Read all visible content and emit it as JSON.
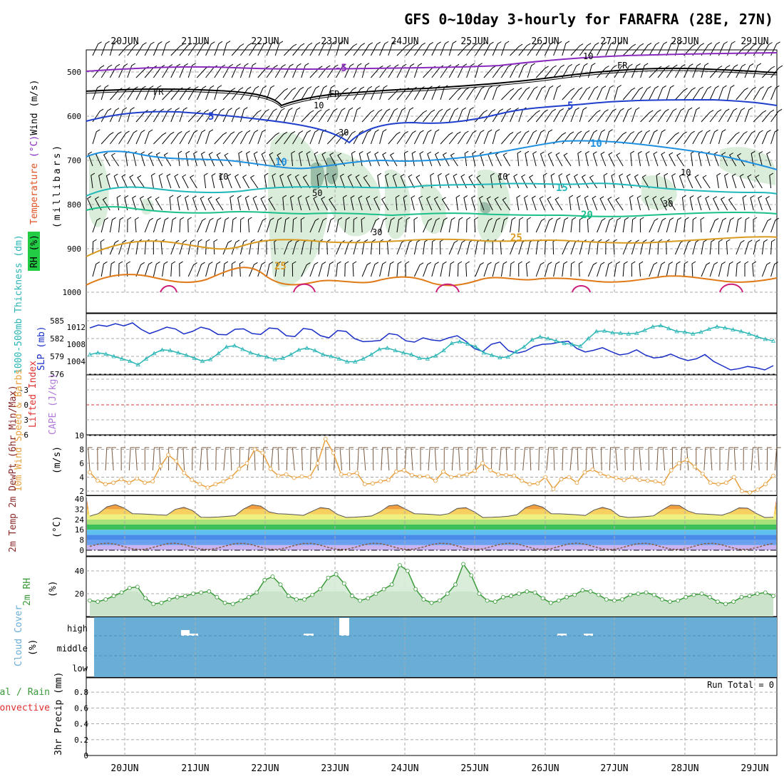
{
  "title": "GFS 0~10day 3-hourly for FARAFRA (28E, 27N)",
  "dates": [
    "20JUN",
    "21JUN",
    "22JUN",
    "23JUN",
    "24JUN",
    "25JUN",
    "26JUN",
    "27JUN",
    "28JUN",
    "29JUN"
  ],
  "colors": {
    "temp_label": "#e05020",
    "wind_label": "#000000",
    "rh_fill": "#d6ead6",
    "cloud_fill": "#6aaed6",
    "slp_line": "#1a2fc8",
    "thickness_line": "#2ab5b5",
    "cape_label": "#b07ad8",
    "li_label": "#e03030",
    "wind10_line": "#e8a040",
    "barb10_color": "#7a5a40",
    "rh2m_line": "#3a9a3a"
  },
  "panels": {
    "upper_air": {
      "ylabel_parts": [
        "Wind",
        "(m/s)",
        "Temperature",
        "(°C)",
        "RH (%)"
      ],
      "ylabel_axis": "(millibars)",
      "pressure_ticks": [
        "500",
        "600",
        "700",
        "800",
        "900",
        "1000"
      ],
      "isotherm_labels": [
        "-5",
        "5",
        "10",
        "15",
        "20",
        "25",
        "FR"
      ],
      "rh_contour_labels": [
        "10",
        "30",
        "50"
      ]
    },
    "thickness_slp": {
      "ylabel_left": "1000-500mb Thickness (dm)",
      "ylabel_right": "SLP (mb)",
      "thickness_ticks": [
        "585",
        "582",
        "579",
        "576"
      ],
      "slp_ticks": [
        "1012",
        "1008",
        "1004"
      ]
    },
    "stability": {
      "ylabel_left": "Lifted Index",
      "ylabel_right": "CAPE (J/kg)",
      "li_ticks": [
        "-3",
        "0",
        "3",
        "6"
      ]
    },
    "wind10m": {
      "ylabel_left": "10m Wind Speed & Barbs",
      "ylabel_unit": "(m/s)",
      "ticks": [
        "10",
        "8",
        "6",
        "4",
        "2"
      ]
    },
    "temp2m": {
      "ylabel": "2m Temp 2m DewPt (6hr Min/Max)",
      "ylabel_unit": "(°C)",
      "ticks": [
        "40",
        "32",
        "24",
        "16",
        "8",
        "0"
      ]
    },
    "rh2m": {
      "ylabel": "2m RH",
      "ylabel_unit": "(%)",
      "ticks": [
        "40",
        "20"
      ]
    },
    "cloud": {
      "ylabel": "Cloud Cover",
      "ylabel_unit": "(%)",
      "levels": [
        "high",
        "middle",
        "low"
      ]
    },
    "precip": {
      "ylabel_left_1": "Total / Rain",
      "ylabel_left_2": "Convective",
      "ylabel": "3hr Precip (mm)",
      "ticks": [
        "0.8",
        "0.6",
        "0.4",
        "0.2",
        "0"
      ],
      "run_total": "Run Total = 0"
    }
  },
  "chart_data": [
    {
      "type": "line",
      "name": "1000-500mb thickness and SLP",
      "x_label": "",
      "series": [
        {
          "name": "SLP (mb)",
          "values": [
            1011.8,
            1012.5,
            1012.2,
            1012.8,
            1012.3,
            1013.0,
            1011.5,
            1010.5,
            1011.2,
            1012.0,
            1011.6,
            1010.4,
            1011.0,
            1012.0,
            1011.5,
            1010.3,
            1010.2,
            1011.5,
            1011.6,
            1010.5,
            1010.3,
            1011.8,
            1011.6,
            1010.0,
            1009.8,
            1011.7,
            1011.4,
            1010.0,
            1009.5,
            1011.2,
            1011.0,
            1009.3,
            1008.6,
            1008.7,
            1008.9,
            1010.5,
            1010.2,
            1008.8,
            1008.5,
            1009.5,
            1009.0,
            1008.8,
            1009.5,
            1010.0,
            1008.7,
            1007.0,
            1006.3,
            1008.0,
            1008.5,
            1006.5,
            1005.9,
            1006.4,
            1007.5,
            1008.0,
            1008.1,
            1008.5,
            1008.7,
            1007.0,
            1006.2,
            1006.6,
            1007.2,
            1006.3,
            1005.5,
            1005.8,
            1006.7,
            1005.5,
            1004.8,
            1005.0,
            1005.7,
            1004.8,
            1004.2,
            1004.6,
            1005.6,
            1004.0,
            1003.0,
            1002.0,
            1002.3,
            1002.8,
            1002.5,
            1002.0,
            1003.0
          ]
        },
        {
          "name": "1000-500mb Thickness (dm)",
          "values": [
            579.3,
            579.6,
            579.4,
            579.0,
            578.6,
            578.2,
            577.6,
            578.6,
            579.5,
            580.1,
            580.0,
            579.6,
            579.2,
            578.7,
            578.2,
            578.5,
            579.5,
            580.6,
            580.8,
            580.2,
            579.6,
            579.2,
            578.9,
            578.5,
            578.7,
            579.3,
            580.1,
            580.4,
            580.0,
            579.3,
            579.0,
            578.6,
            578.1,
            578.1,
            578.6,
            579.3,
            580.2,
            580.4,
            580.0,
            579.6,
            579.3,
            578.7,
            578.6,
            579.1,
            580.0,
            581.2,
            581.5,
            581.1,
            580.6,
            579.6,
            579.2,
            578.8,
            578.9,
            579.8,
            580.6,
            581.8,
            582.3,
            582.0,
            581.6,
            581.2,
            581.0,
            580.7,
            582.0,
            583.2,
            583.3,
            583.0,
            582.9,
            582.8,
            582.9,
            583.4,
            584.0,
            584.2,
            583.7,
            583.2,
            583.1,
            582.8,
            583.1,
            583.6,
            584.0,
            583.8,
            583.5,
            583.2,
            582.8,
            582.3,
            581.9,
            581.6
          ]
        }
      ]
    },
    {
      "type": "line",
      "name": "10m wind speed",
      "ylim": [
        2,
        10
      ],
      "series": [
        {
          "name": "10m Wind Speed (m/s)",
          "values": [
            4.7,
            3.5,
            3.0,
            3.2,
            3.7,
            3.2,
            3.8,
            3.2,
            3.4,
            5.6,
            7.2,
            6.3,
            4.6,
            3.6,
            3.0,
            2.5,
            3.0,
            3.4,
            4.0,
            5.2,
            6.0,
            8.0,
            7.5,
            5.2,
            4.2,
            4.4,
            3.9,
            4.1,
            4.0,
            6.0,
            9.5,
            7.5,
            4.4,
            4.4,
            4.6,
            3.0,
            3.1,
            3.4,
            3.6,
            4.8,
            5.0,
            4.3,
            4.1,
            4.1,
            3.5,
            4.8,
            4.0,
            4.2,
            4.4,
            4.9,
            6.0,
            5.0,
            4.4,
            4.3,
            4.2,
            3.5,
            3.0,
            3.1,
            4.0,
            2.3,
            3.7,
            4.0,
            3.2,
            4.7,
            5.1,
            4.5,
            4.1,
            3.9,
            3.6,
            4.0,
            3.6,
            3.5,
            3.4,
            3.1,
            5.0,
            6.0,
            6.5,
            5.5,
            4.5,
            3.2,
            3.0,
            3.2,
            4.0,
            2.0,
            1.8,
            2.2,
            3.0,
            4.2
          ]
        }
      ]
    },
    {
      "type": "area",
      "name": "2m relative humidity",
      "ylim": [
        0,
        50
      ],
      "series": [
        {
          "name": "2m RH (%)",
          "values": [
            14,
            13,
            15,
            18,
            21,
            25,
            26,
            16,
            11,
            12,
            15,
            17,
            18,
            20,
            21,
            22,
            17,
            12,
            11,
            14,
            17,
            21,
            32,
            35,
            28,
            18,
            15,
            15,
            19,
            24,
            34,
            37,
            29,
            18,
            14,
            16,
            20,
            24,
            28,
            45,
            40,
            24,
            15,
            12,
            14,
            20,
            28,
            46,
            36,
            20,
            14,
            13,
            17,
            18,
            20,
            22,
            21,
            16,
            12,
            14,
            17,
            19,
            23,
            22,
            19,
            15,
            14,
            15,
            19,
            20,
            21,
            19,
            15,
            13,
            14,
            17,
            19,
            20,
            17,
            13,
            11,
            13,
            17,
            18,
            20,
            21,
            18
          ]
        }
      ]
    },
    {
      "type": "bar",
      "name": "3hr precipitation",
      "ylim": [
        0,
        1
      ],
      "series": [
        {
          "name": "3hr Precip (mm)",
          "values": []
        }
      ]
    }
  ]
}
